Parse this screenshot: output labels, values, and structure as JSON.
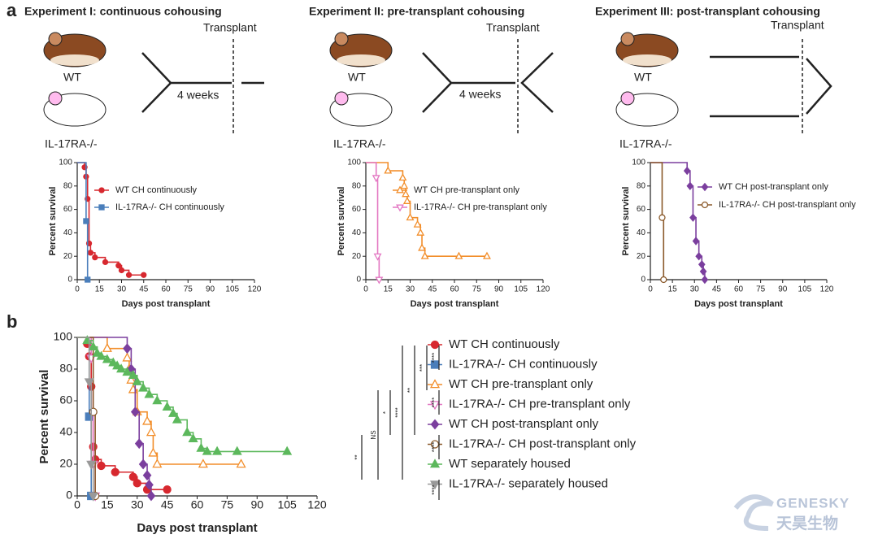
{
  "panel_labels": [
    "a",
    "b"
  ],
  "diagrams": [
    {
      "title": "Experiment I: continuous cohousing",
      "wt_label": "WT",
      "ko_label": "IL-17RA-/-",
      "transplant": "Transplant",
      "weeks": "4 weeks"
    },
    {
      "title": "Experiment II: pre-transplant cohousing",
      "wt_label": "WT",
      "ko_label": "IL-17RA-/-",
      "transplant": "Transplant",
      "weeks": "4 weeks"
    },
    {
      "title": "Experiment III: post-transplant cohousing",
      "wt_label": "WT",
      "ko_label": "IL-17RA-/-",
      "transplant": "Transplant"
    }
  ],
  "watermark": {
    "brand": "GENESKY",
    "chinese": "天昊生物"
  },
  "chart_data": [
    {
      "type": "line",
      "step": true,
      "legend": "upper right",
      "xlabel": "Days post transplant",
      "ylabel": "Percent survival",
      "xlim": [
        0,
        120
      ],
      "xticks": [
        0,
        15,
        30,
        45,
        60,
        75,
        90,
        105,
        120
      ],
      "ylim": [
        0,
        100
      ],
      "yticks": [
        0,
        20,
        40,
        60,
        80,
        100
      ],
      "series": [
        {
          "name": "WT CH continuously",
          "color": "#d7282f",
          "marker": "circle",
          "open": false,
          "x": [
            0,
            5,
            6,
            7,
            8,
            9,
            12,
            19,
            28,
            30,
            35,
            45
          ],
          "values": [
            100,
            96,
            88,
            69,
            31,
            23,
            19,
            15,
            12,
            8,
            4,
            4
          ]
        },
        {
          "name": "IL-17RA-/- CH continuously",
          "color": "#4a7ebb",
          "marker": "square",
          "open": false,
          "x": [
            0,
            6,
            7
          ],
          "values": [
            100,
            50,
            0
          ]
        }
      ]
    },
    {
      "type": "line",
      "step": true,
      "legend": "upper right",
      "xlabel": "Days post transplant",
      "ylabel": "Percent survival",
      "xlim": [
        0,
        120
      ],
      "xticks": [
        0,
        15,
        30,
        45,
        60,
        75,
        90,
        105,
        120
      ],
      "ylim": [
        0,
        100
      ],
      "yticks": [
        0,
        20,
        40,
        60,
        80,
        100
      ],
      "series": [
        {
          "name": "WT CH pre-transplant only",
          "color": "#f28e2b",
          "marker": "triangle",
          "open": true,
          "x": [
            0,
            15,
            25,
            26,
            27,
            28,
            30,
            35,
            37,
            38,
            40,
            63,
            82
          ],
          "values": [
            100,
            93,
            87,
            80,
            73,
            67,
            53,
            47,
            40,
            27,
            20,
            20,
            20
          ]
        },
        {
          "name": "IL-17RA-/- CH pre-transplant only",
          "color": "#e377c2",
          "marker": "triangle-down",
          "open": true,
          "x": [
            0,
            7,
            8,
            9
          ],
          "values": [
            100,
            87,
            20,
            0
          ]
        }
      ]
    },
    {
      "type": "line",
      "step": true,
      "legend": "upper right",
      "xlabel": "Days post transplant",
      "ylabel": "Percent survival",
      "xlim": [
        0,
        120
      ],
      "xticks": [
        0,
        15,
        30,
        45,
        60,
        75,
        90,
        105,
        120
      ],
      "ylim": [
        0,
        100
      ],
      "yticks": [
        0,
        20,
        40,
        60,
        80,
        100
      ],
      "series": [
        {
          "name": "WT CH post-transplant only",
          "color": "#7b3f9e",
          "marker": "diamond",
          "open": false,
          "x": [
            0,
            25,
            27,
            29,
            31,
            33,
            35,
            36,
            37
          ],
          "values": [
            100,
            93,
            80,
            53,
            33,
            20,
            13,
            7,
            0
          ]
        },
        {
          "name": "IL-17RA-/- CH post-transplant only",
          "color": "#8b5a2b",
          "marker": "circle",
          "open": true,
          "x": [
            0,
            8,
            9
          ],
          "values": [
            100,
            53,
            0
          ]
        }
      ]
    },
    {
      "type": "line",
      "step": true,
      "legend": "outside right",
      "xlabel": "Days post transplant",
      "ylabel": "Percent survival",
      "xlim": [
        0,
        120
      ],
      "xticks": [
        0,
        15,
        30,
        45,
        60,
        75,
        90,
        105,
        120
      ],
      "ylim": [
        0,
        100
      ],
      "yticks": [
        0,
        20,
        40,
        60,
        80,
        100
      ],
      "series": [
        {
          "name": "WT CH continuously",
          "color": "#d7282f",
          "marker": "circle",
          "open": false,
          "x": [
            0,
            5,
            6,
            7,
            8,
            9,
            12,
            19,
            28,
            30,
            35,
            45
          ],
          "values": [
            100,
            96,
            88,
            69,
            31,
            23,
            19,
            15,
            12,
            8,
            4,
            4
          ]
        },
        {
          "name": "IL-17RA-/- CH continuously",
          "color": "#4a7ebb",
          "marker": "square",
          "open": false,
          "x": [
            0,
            6,
            7
          ],
          "values": [
            100,
            50,
            0
          ]
        },
        {
          "name": "WT CH pre-transplant only",
          "color": "#f28e2b",
          "marker": "triangle",
          "open": true,
          "x": [
            0,
            15,
            25,
            26,
            27,
            28,
            30,
            35,
            37,
            38,
            40,
            63,
            82
          ],
          "values": [
            100,
            93,
            87,
            80,
            73,
            67,
            53,
            47,
            40,
            27,
            20,
            20,
            20
          ]
        },
        {
          "name": "IL-17RA-/- CH pre-transplant only",
          "color": "#e377c2",
          "marker": "triangle-down",
          "open": true,
          "x": [
            0,
            7,
            8,
            9
          ],
          "values": [
            100,
            87,
            20,
            0
          ]
        },
        {
          "name": "WT CH post-transplant only",
          "color": "#7b3f9e",
          "marker": "diamond",
          "open": false,
          "x": [
            0,
            25,
            27,
            29,
            31,
            33,
            35,
            36,
            37
          ],
          "values": [
            100,
            93,
            80,
            53,
            33,
            20,
            13,
            7,
            0
          ]
        },
        {
          "name": "IL-17RA-/- CH post-transplant only",
          "color": "#8b5a2b",
          "marker": "circle",
          "open": true,
          "x": [
            0,
            8,
            9
          ],
          "values": [
            100,
            53,
            0
          ]
        },
        {
          "name": "WT separately housed",
          "color": "#5cb85c",
          "marker": "triangle",
          "open": false,
          "x": [
            0,
            5,
            8,
            10,
            12,
            15,
            18,
            20,
            22,
            25,
            28,
            30,
            33,
            36,
            40,
            45,
            48,
            50,
            55,
            58,
            62,
            65,
            70,
            80,
            105
          ],
          "values": [
            100,
            98,
            94,
            90,
            88,
            86,
            84,
            82,
            80,
            78,
            76,
            72,
            68,
            64,
            60,
            56,
            52,
            48,
            40,
            36,
            30,
            28,
            28,
            28,
            28
          ]
        },
        {
          "name": "IL-17RA-/- separately housed",
          "color": "#999999",
          "marker": "triangle-down",
          "open": false,
          "x": [
            0,
            6,
            7,
            8
          ],
          "values": [
            100,
            72,
            20,
            0
          ]
        }
      ],
      "significance": [
        "**",
        "NS",
        "*",
        "****",
        "**",
        "***",
        "****",
        "****",
        "****",
        "****"
      ]
    }
  ]
}
